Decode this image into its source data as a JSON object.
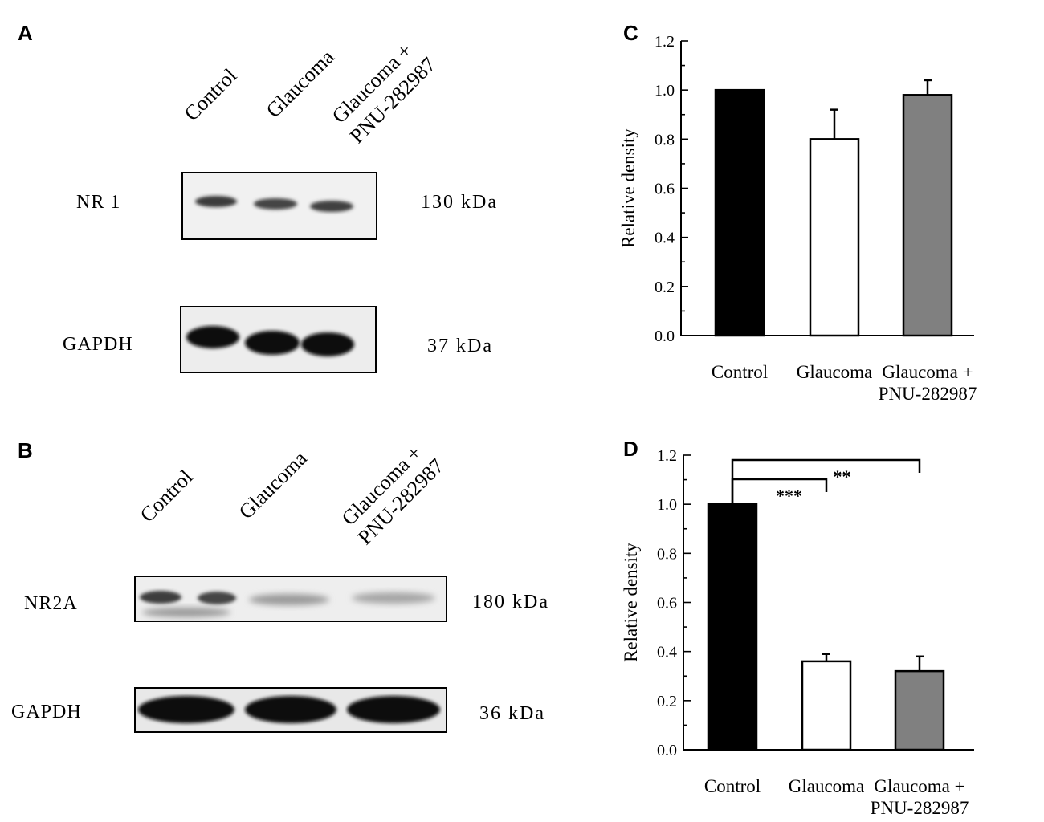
{
  "panelA": {
    "letter": "A",
    "lanes": [
      "Control",
      "Glaucoma",
      "Glaucoma +",
      "PNU-282987"
    ],
    "blot1": {
      "name": "NR 1",
      "kda": "130  kDa"
    },
    "blot2": {
      "name": "GAPDH",
      "kda": "37  kDa"
    }
  },
  "panelB": {
    "letter": "B",
    "lanes": [
      "Control",
      "Glaucoma",
      "Glaucoma +",
      "PNU-282987"
    ],
    "blot1": {
      "name": "NR2A",
      "kda": "180  kDa"
    },
    "blot2": {
      "name": "GAPDH",
      "kda": "36  kDa"
    }
  },
  "chart_data": [
    {
      "panel": "C",
      "type": "bar",
      "categories": [
        "Control",
        "Glaucoma",
        "Glaucoma +\nPNU-282987"
      ],
      "values": [
        1.0,
        0.8,
        0.98
      ],
      "errors": [
        0.0,
        0.12,
        0.06
      ],
      "bar_colors": [
        "#000000",
        "#ffffff",
        "#808080"
      ],
      "ylabel": "Relative density",
      "ylim": [
        0,
        1.2
      ],
      "yticks": [
        "0.0",
        "0.2",
        "0.4",
        "0.6",
        "0.8",
        "1.0",
        "1.2"
      ],
      "significance": []
    },
    {
      "panel": "D",
      "type": "bar",
      "categories": [
        "Control",
        "Glaucoma",
        "Glaucoma +\nPNU-282987"
      ],
      "values": [
        1.0,
        0.36,
        0.32
      ],
      "errors": [
        0.0,
        0.03,
        0.06
      ],
      "bar_colors": [
        "#000000",
        "#ffffff",
        "#808080"
      ],
      "ylabel": "Relative density",
      "ylim": [
        0,
        1.2
      ],
      "yticks": [
        "0.0",
        "0.2",
        "0.4",
        "0.6",
        "0.8",
        "1.0",
        "1.2"
      ],
      "significance": [
        {
          "from": 0,
          "to": 1,
          "label": "***"
        },
        {
          "from": 0,
          "to": 2,
          "label": "**"
        }
      ]
    }
  ]
}
